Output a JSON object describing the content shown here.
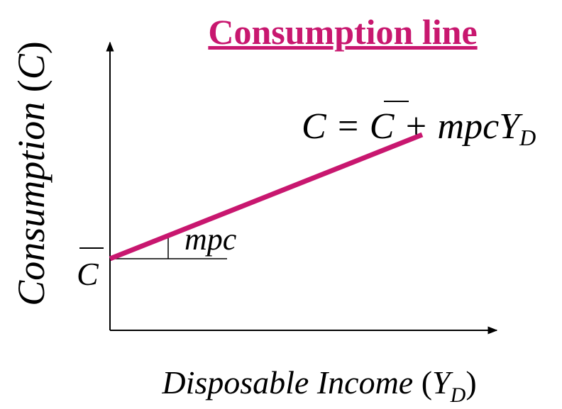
{
  "title": "Consumption line",
  "y_axis_label": [
    "Consumption ",
    "(",
    "C",
    ")"
  ],
  "x_axis_label": [
    "Disposable Income ",
    "(",
    "Y",
    "D",
    ")"
  ],
  "equation": [
    "C = ",
    "C",
    " + mpcY",
    "D"
  ],
  "slope_label": "mpc",
  "intercept_label": "C"
}
